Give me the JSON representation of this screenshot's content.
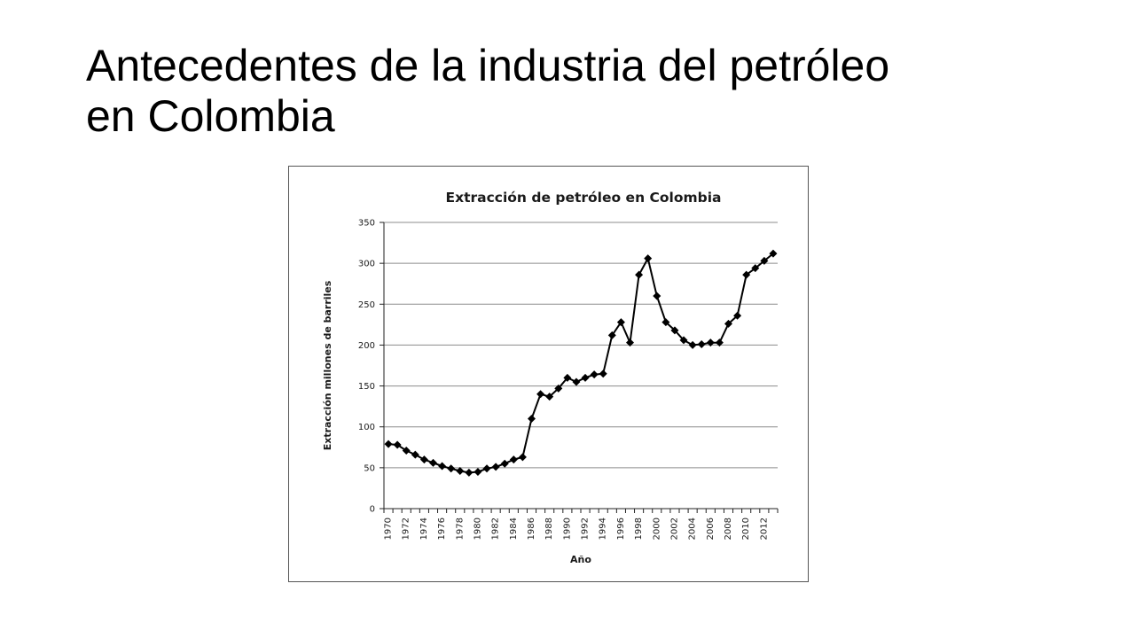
{
  "slide": {
    "title_line1": "Antecedentes de la industria del petróleo",
    "title_line2": "en Colombia"
  },
  "chart_data": {
    "type": "line",
    "title": "Extracción de petróleo en Colombia",
    "xlabel": "Año",
    "ylabel": "Extracción millones de barriles",
    "ylim": [
      0,
      350
    ],
    "yticks": [
      0,
      50,
      100,
      150,
      200,
      250,
      300,
      350
    ],
    "xticks": [
      "1970",
      "1972",
      "1974",
      "1976",
      "1978",
      "1980",
      "1982",
      "1984",
      "1986",
      "1988",
      "1990",
      "1992",
      "1994",
      "1996",
      "1998",
      "2000",
      "2002",
      "2004",
      "2006",
      "2008",
      "2010",
      "2012"
    ],
    "grid": true,
    "legend": "none",
    "marker": "diamond",
    "line_color": "#000000",
    "x": [
      1970,
      1971,
      1972,
      1973,
      1974,
      1975,
      1976,
      1977,
      1978,
      1979,
      1980,
      1981,
      1982,
      1983,
      1984,
      1985,
      1986,
      1987,
      1988,
      1989,
      1990,
      1991,
      1992,
      1993,
      1994,
      1995,
      1996,
      1997,
      1998,
      1999,
      2000,
      2001,
      2002,
      2003,
      2004,
      2005,
      2006,
      2007,
      2008,
      2009,
      2010,
      2011,
      2012,
      2013
    ],
    "values": [
      79,
      78,
      71,
      66,
      60,
      56,
      52,
      49,
      46,
      44,
      45,
      49,
      51,
      55,
      60,
      63,
      110,
      140,
      137,
      147,
      160,
      155,
      160,
      164,
      165,
      212,
      228,
      203,
      286,
      306,
      260,
      228,
      218,
      206,
      200,
      201,
      203,
      203,
      226,
      236,
      286,
      294,
      303,
      312
    ]
  }
}
